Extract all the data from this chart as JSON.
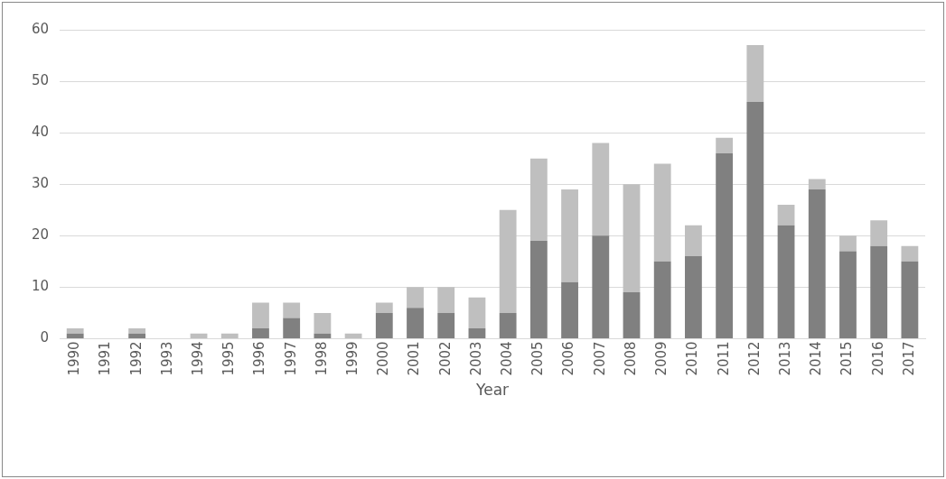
{
  "chart_data": {
    "type": "bar",
    "stacked": true,
    "xlabel": "Year",
    "categories": [
      "1990",
      "1991",
      "1992",
      "1993",
      "1994",
      "1995",
      "1996",
      "1997",
      "1998",
      "1999",
      "2000",
      "2001",
      "2002",
      "2003",
      "2004",
      "2005",
      "2006",
      "2007",
      "2008",
      "2009",
      "2010",
      "2011",
      "2012",
      "2013",
      "2014",
      "2015",
      "2016",
      "2017"
    ],
    "series": [
      {
        "color": "#808080",
        "values": [
          1,
          0,
          1,
          0,
          0,
          0,
          2,
          4,
          1,
          0,
          5,
          6,
          5,
          2,
          5,
          19,
          11,
          20,
          9,
          15,
          16,
          36,
          46,
          22,
          29,
          17,
          18,
          15
        ]
      },
      {
        "color": "#bfbfbf",
        "values": [
          1,
          0,
          1,
          0,
          1,
          1,
          5,
          3,
          4,
          1,
          2,
          4,
          5,
          6,
          20,
          16,
          18,
          18,
          21,
          19,
          6,
          3,
          11,
          4,
          2,
          3,
          5,
          3
        ]
      }
    ],
    "ylim": [
      0,
      60
    ],
    "yticks": [
      0,
      10,
      20,
      30,
      40,
      50,
      60
    ],
    "grid": "y",
    "legend": false
  }
}
